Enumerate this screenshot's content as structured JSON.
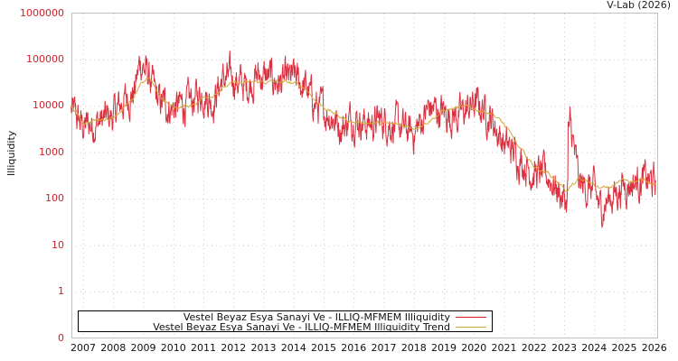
{
  "credit": "V-Lab (2026)",
  "ylabel": "Illiquidity",
  "colors": {
    "series": "#d7192a",
    "trend": "#d4a836",
    "grid": "#c8c8c8",
    "tick_label_y": "#d0202a",
    "axis": "#c0c0c0"
  },
  "legend": {
    "items": [
      {
        "label": "Vestel Beyaz Esya Sanayi Ve - ILLIQ-MFMEM Illiquidity",
        "color": "#d7192a"
      },
      {
        "label": "Vestel Beyaz Esya Sanayi Ve - ILLIQ-MFMEM Illiquidity Trend",
        "color": "#d4a836"
      }
    ]
  },
  "chart_data": {
    "type": "line",
    "title": "",
    "xlabel": "",
    "ylabel": "Illiquidity",
    "yscale": "log",
    "ylim": [
      0,
      1000000
    ],
    "xlim": [
      2006.6,
      2026.05
    ],
    "yticks": [
      "1000000",
      "100000",
      "10000",
      "1000",
      "100",
      "10",
      "1",
      "0"
    ],
    "xticks": [
      "2007",
      "2008",
      "2009",
      "2010",
      "2011",
      "2012",
      "2013",
      "2014",
      "2015",
      "2016",
      "2017",
      "2018",
      "2019",
      "2020",
      "2021",
      "2022",
      "2023",
      "2024",
      "2025",
      "2026"
    ],
    "grid": true,
    "legend_position": "bottom-inside",
    "x": [
      2006.6,
      2007.0,
      2007.5,
      2008.0,
      2008.3,
      2008.7,
      2008.9,
      2009.2,
      2009.5,
      2010.0,
      2010.5,
      2011.0,
      2011.3,
      2011.6,
      2012.0,
      2012.4,
      2012.8,
      2013.2,
      2013.6,
      2014.0,
      2014.4,
      2014.8,
      2015.2,
      2015.6,
      2016.0,
      2016.5,
      2017.0,
      2017.5,
      2018.0,
      2018.5,
      2019.0,
      2019.5,
      2020.0,
      2020.3,
      2020.6,
      2021.0,
      2021.5,
      2022.0,
      2022.5,
      2022.9,
      2023.1,
      2023.2,
      2023.5,
      2024.0,
      2024.2,
      2024.5,
      2025.0,
      2025.5,
      2026.0
    ],
    "series": [
      {
        "name": "Vestel Beyaz Esya Sanayi Ve - ILLIQ-MFMEM Illiquidity",
        "values": [
          8000,
          3500,
          4500,
          6000,
          12000,
          20000,
          90000,
          40000,
          12000,
          9000,
          11000,
          20000,
          12000,
          35000,
          40000,
          25000,
          45000,
          40000,
          30000,
          40000,
          25000,
          9000,
          7000,
          3500,
          6000,
          4000,
          5000,
          3500,
          2500,
          9000,
          7000,
          6000,
          11000,
          9000,
          5000,
          1500,
          800,
          350,
          300,
          120,
          80,
          4500,
          200,
          150,
          60,
          100,
          200,
          250,
          220
        ]
      },
      {
        "name": "Vestel Beyaz Esya Sanayi Ve - ILLIQ-MFMEM Illiquidity Trend",
        "values": [
          10000,
          4500,
          5000,
          6000,
          9000,
          13000,
          30000,
          40000,
          18000,
          9000,
          10000,
          15000,
          18000,
          25000,
          30000,
          30000,
          32000,
          33000,
          32000,
          30000,
          24000,
          12000,
          8000,
          5500,
          4500,
          4500,
          4000,
          3800,
          3500,
          5000,
          8000,
          9000,
          8500,
          8000,
          7500,
          4000,
          1200,
          500,
          350,
          200,
          150,
          180,
          250,
          200,
          160,
          170,
          260,
          250,
          230
        ]
      }
    ]
  }
}
